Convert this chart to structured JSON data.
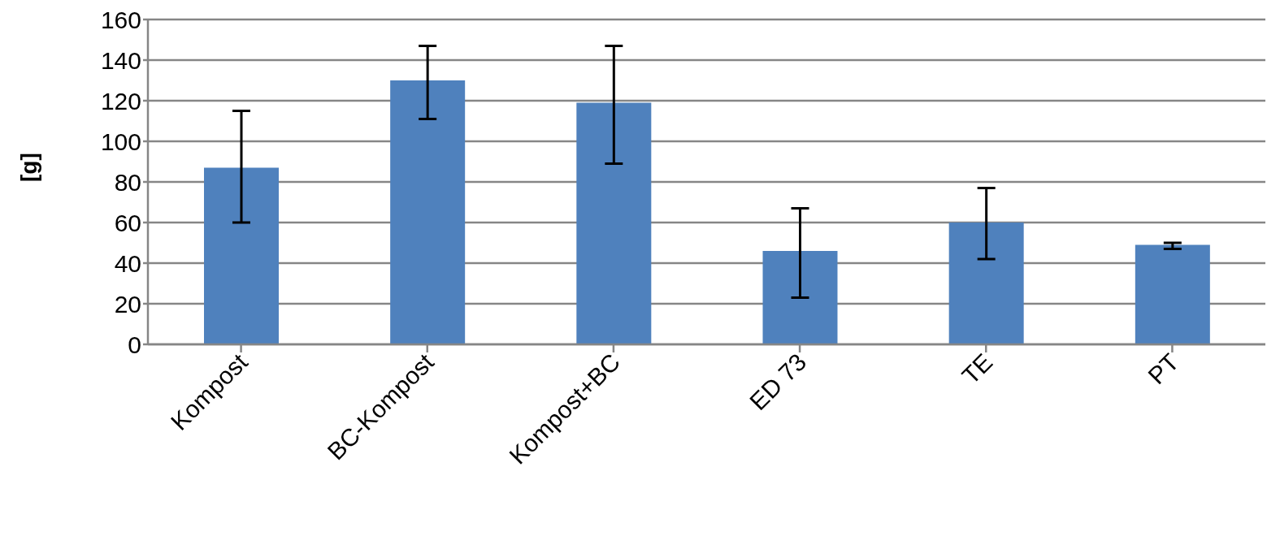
{
  "chart_data": {
    "type": "bar",
    "ylabel": "[g]",
    "categories": [
      "Kompost",
      "BC-Kompost",
      "Kompost+BC",
      "ED 73",
      "TE",
      "PT"
    ],
    "values": [
      87,
      130,
      119,
      46,
      60,
      49
    ],
    "errors": [
      [
        60,
        115
      ],
      [
        111,
        147
      ],
      [
        89,
        147
      ],
      [
        23,
        67
      ],
      [
        42,
        77
      ],
      [
        47,
        50
      ]
    ],
    "color": "#4f81bd",
    "ylim": [
      0,
      160
    ],
    "yticks": [
      0,
      20,
      40,
      60,
      80,
      100,
      120,
      140,
      160
    ],
    "grid": "y",
    "legend": false
  }
}
